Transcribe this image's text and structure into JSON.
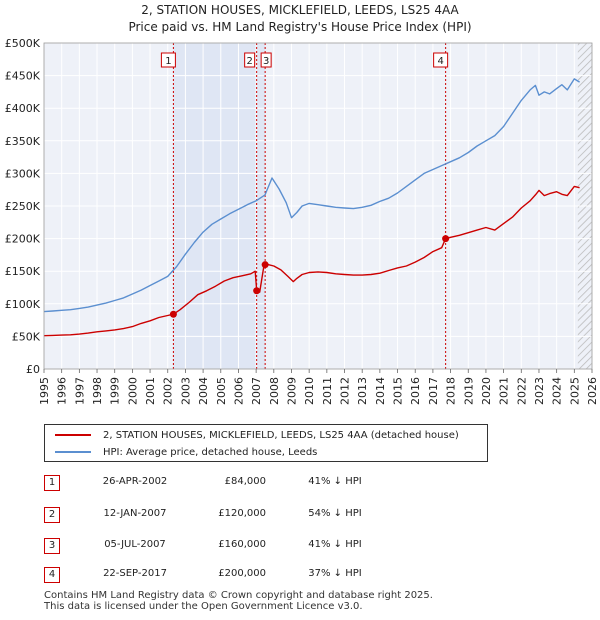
{
  "chart_data": {
    "type": "line",
    "title": "2, STATION HOUSES, MICKLEFIELD, LEEDS, LS25 4AA",
    "subtitle": "Price paid vs. HM Land Registry's House Price Index (HPI)",
    "xlim": [
      1995,
      2026
    ],
    "ylim": [
      0,
      500000
    ],
    "x_ticks": [
      "1995",
      "1996",
      "1997",
      "1998",
      "1999",
      "2000",
      "2001",
      "2002",
      "2003",
      "2004",
      "2005",
      "2006",
      "2007",
      "2008",
      "2009",
      "2010",
      "2011",
      "2012",
      "2013",
      "2014",
      "2015",
      "2016",
      "2017",
      "2018",
      "2019",
      "2020",
      "2021",
      "2022",
      "2023",
      "2024",
      "2025",
      "2026"
    ],
    "y_ticks": [
      {
        "value": 0,
        "label": "£0"
      },
      {
        "value": 50000,
        "label": "£50K"
      },
      {
        "value": 100000,
        "label": "£100K"
      },
      {
        "value": 150000,
        "label": "£150K"
      },
      {
        "value": 200000,
        "label": "£200K"
      },
      {
        "value": 250000,
        "label": "£250K"
      },
      {
        "value": 300000,
        "label": "£300K"
      },
      {
        "value": 350000,
        "label": "£350K"
      },
      {
        "value": 400000,
        "label": "£400K"
      },
      {
        "value": 450000,
        "label": "£450K"
      },
      {
        "value": 500000,
        "label": "£500K"
      }
    ],
    "series": [
      {
        "name": "2, STATION HOUSES, MICKLEFIELD, LEEDS, LS25 4AA (detached house)",
        "color": "#cc0000",
        "x": [
          1995.0,
          1995.5,
          1996.0,
          1996.5,
          1997.0,
          1997.5,
          1998.0,
          1998.5,
          1999.0,
          1999.5,
          2000.0,
          2000.5,
          2001.0,
          2001.5,
          2002.0,
          2002.32,
          2002.7,
          2003.2,
          2003.7,
          2004.2,
          2004.7,
          2005.2,
          2005.7,
          2006.2,
          2006.7,
          2006.95,
          2007.03,
          2007.2,
          2007.45,
          2007.5,
          2007.7,
          2008.0,
          2008.4,
          2008.8,
          2009.1,
          2009.3,
          2009.6,
          2010.0,
          2010.5,
          2011.0,
          2011.5,
          2012.0,
          2012.5,
          2013.0,
          2013.5,
          2014.0,
          2014.5,
          2015.0,
          2015.5,
          2016.0,
          2016.5,
          2017.0,
          2017.5,
          2017.72,
          2018.0,
          2018.5,
          2019.0,
          2019.5,
          2020.0,
          2020.5,
          2021.0,
          2021.5,
          2022.0,
          2022.5,
          2022.8,
          2023.0,
          2023.3,
          2023.6,
          2024.0,
          2024.3,
          2024.6,
          2025.0,
          2025.3
        ],
        "values": [
          51000,
          51500,
          52000,
          52500,
          53500,
          55000,
          57000,
          58500,
          60000,
          62000,
          65000,
          70000,
          74000,
          79000,
          82000,
          84000,
          91000,
          102000,
          114000,
          120000,
          127000,
          135000,
          140000,
          143000,
          146000,
          150000,
          120000,
          118000,
          160000,
          161000,
          160000,
          158000,
          152000,
          142000,
          134000,
          139000,
          145000,
          148000,
          149000,
          148000,
          146000,
          145000,
          144000,
          144000,
          145000,
          147000,
          151000,
          155000,
          158000,
          164000,
          171000,
          180000,
          186000,
          200000,
          202000,
          205000,
          209000,
          213000,
          217000,
          213000,
          223000,
          233000,
          247000,
          258000,
          267000,
          274000,
          266000,
          269000,
          272000,
          268000,
          266000,
          280000,
          278000
        ]
      },
      {
        "name": "HPI: Average price, detached house, Leeds",
        "color": "#5b8fd0",
        "x": [
          1995.0,
          1995.5,
          1996.0,
          1996.5,
          1997.0,
          1997.5,
          1998.0,
          1998.5,
          1999.0,
          1999.5,
          2000.0,
          2000.5,
          2001.0,
          2001.5,
          2002.0,
          2002.5,
          2003.0,
          2003.5,
          2004.0,
          2004.5,
          2005.0,
          2005.5,
          2006.0,
          2006.5,
          2007.0,
          2007.5,
          2007.9,
          2008.3,
          2008.7,
          2009.0,
          2009.3,
          2009.6,
          2010.0,
          2010.5,
          2011.0,
          2011.5,
          2012.0,
          2012.5,
          2013.0,
          2013.5,
          2014.0,
          2014.5,
          2015.0,
          2015.5,
          2016.0,
          2016.5,
          2017.0,
          2017.5,
          2018.0,
          2018.5,
          2019.0,
          2019.5,
          2020.0,
          2020.5,
          2021.0,
          2021.5,
          2022.0,
          2022.5,
          2022.8,
          2023.0,
          2023.3,
          2023.6,
          2024.0,
          2024.3,
          2024.6,
          2025.0,
          2025.3
        ],
        "values": [
          88000,
          89000,
          90000,
          91000,
          93000,
          95000,
          98000,
          101000,
          105000,
          109000,
          115000,
          121000,
          128000,
          135000,
          142000,
          157000,
          176000,
          194000,
          210000,
          222000,
          230000,
          238000,
          245000,
          252000,
          258000,
          267000,
          293000,
          276000,
          255000,
          232000,
          240000,
          250000,
          254000,
          252000,
          250000,
          248000,
          247000,
          246000,
          248000,
          251000,
          257000,
          262000,
          270000,
          280000,
          290000,
          300000,
          306000,
          312000,
          318000,
          324000,
          332000,
          342000,
          350000,
          358000,
          372000,
          392000,
          412000,
          428000,
          435000,
          420000,
          425000,
          422000,
          430000,
          436000,
          428000,
          445000,
          440000
        ]
      }
    ],
    "markers": [
      {
        "label": "1",
        "x": 2002.32,
        "y": 84000
      },
      {
        "label": "2",
        "x": 2007.03,
        "y": 120000
      },
      {
        "label": "3",
        "x": 2007.51,
        "y": 160000
      },
      {
        "label": "4",
        "x": 2017.72,
        "y": 200000
      }
    ],
    "purchase_periods": [
      [
        2002.32,
        2007.51
      ]
    ],
    "forecast_start": 2025.2
  },
  "legend": {
    "property_label": "2, STATION HOUSES, MICKLEFIELD, LEEDS, LS25 4AA (detached house)",
    "hpi_label": "HPI: Average price, detached house, Leeds",
    "property_color": "#cc0000",
    "hpi_color": "#5b8fd0"
  },
  "transactions": [
    {
      "num": "1",
      "date": "26-APR-2002",
      "price": "£84,000",
      "hpi": "41% ↓ HPI"
    },
    {
      "num": "2",
      "date": "12-JAN-2007",
      "price": "£120,000",
      "hpi": "54% ↓ HPI"
    },
    {
      "num": "3",
      "date": "05-JUL-2007",
      "price": "£160,000",
      "hpi": "41% ↓ HPI"
    },
    {
      "num": "4",
      "date": "22-SEP-2017",
      "price": "£200,000",
      "hpi": "37% ↓ HPI"
    }
  ],
  "footer": {
    "line1": "Contains HM Land Registry data © Crown copyright and database right 2025.",
    "line2": "This data is licensed under the Open Government Licence v3.0."
  }
}
